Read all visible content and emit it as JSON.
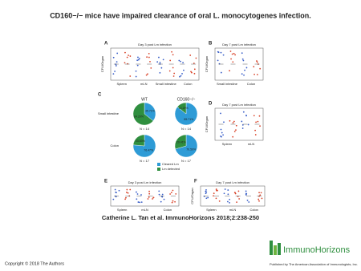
{
  "title": "CD160−/− mice have impaired clearance of oral L. monocytogenes infection.",
  "figure": {
    "panel_a": {
      "letter": "A",
      "title": "Day 3 post Lm infection",
      "ylabel": "CFU/Organ",
      "groups": [
        "Spleen",
        "mLN",
        "Small intestine",
        "Colon"
      ]
    },
    "panel_b": {
      "letter": "B",
      "title": "Day 7 post Lm infection",
      "ylabel": "CFU/Organ",
      "groups": [
        "Small intestine",
        "Colon"
      ]
    },
    "panel_c": {
      "letter": "C",
      "columns": [
        "WT",
        "CD160−/−"
      ],
      "rows": [
        "Small intestine",
        "Colon"
      ],
      "n": [
        "N = 14",
        "N = 17"
      ],
      "legend": [
        "Cleared Lm",
        "Lm detected"
      ],
      "pies": [
        {
          "values": [
            35.71,
            64.29
          ],
          "value_labels": [
            "35.71%",
            "64.29%"
          ]
        },
        {
          "values": [
            85.71,
            14.29
          ],
          "value_labels": [
            "85.71%",
            "14.29%"
          ]
        },
        {
          "values": [
            76.47,
            23.53
          ],
          "value_labels": [
            "76.47%",
            "23.53%"
          ]
        },
        {
          "values": [
            70.59,
            29.41
          ],
          "value_labels": [
            "70.59%",
            "29.41%"
          ]
        }
      ]
    },
    "panel_d": {
      "letter": "D",
      "title": "Day 7 post Lm infection",
      "ylabel": "CFU/Organ",
      "groups": [
        "Spleen",
        "mLN"
      ]
    },
    "panel_e": {
      "letter": "E",
      "title": "Day 3 post Lm infection",
      "groups": [
        "Spleen",
        "mLN",
        "Colon"
      ]
    },
    "panel_f": {
      "letter": "F",
      "title": "Day 7 post Lm infection",
      "ylabel": "CFU/Organ",
      "groups": [
        "Spleen",
        "mLN",
        "Colon"
      ]
    }
  },
  "citation": "Catherine L. Tan et al. ImmunoHorizons 2018;2:238-250",
  "copyright": "Copyright © 2018 The Authors",
  "logo": {
    "name": "ImmunoHorizons",
    "publisher": "Published by The American Association of Immunologists, Inc."
  }
}
